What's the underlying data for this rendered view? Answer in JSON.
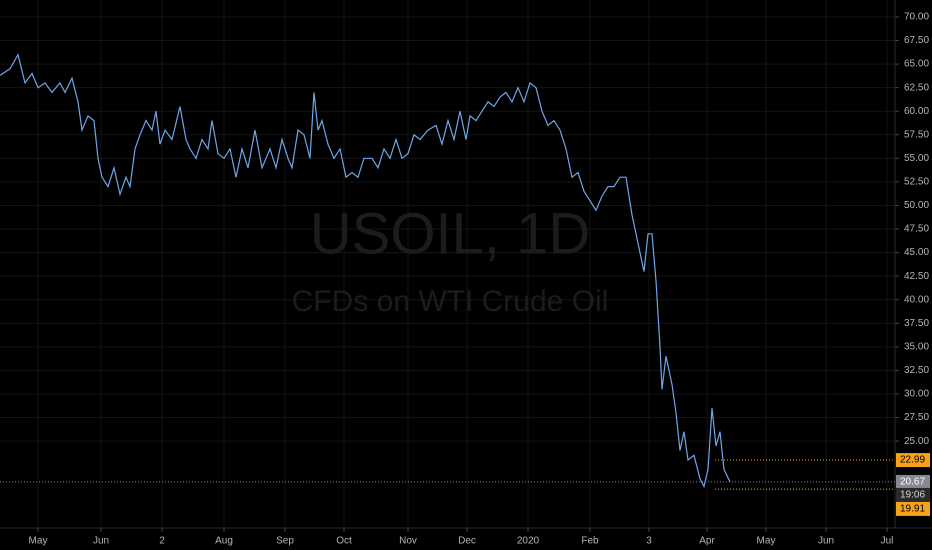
{
  "chart_data": {
    "type": "line",
    "watermark_title": "USOIL, 1D",
    "watermark_subtitle": "CFDs on WTI Crude Oil",
    "x": [
      0,
      10,
      18,
      25,
      32,
      38,
      45,
      52,
      60,
      65,
      72,
      78,
      82,
      88,
      94,
      98,
      102,
      108,
      114,
      120,
      126,
      130,
      135,
      140,
      146,
      152,
      156,
      160,
      165,
      172,
      180,
      186,
      190,
      196,
      202,
      208,
      212,
      218,
      224,
      230,
      236,
      242,
      248,
      255,
      262,
      270,
      276,
      282,
      288,
      292,
      298,
      304,
      310,
      314,
      318,
      322,
      328,
      334,
      340,
      346,
      352,
      358,
      364,
      372,
      378,
      384,
      390,
      396,
      402,
      408,
      414,
      420,
      428,
      436,
      442,
      448,
      454,
      460,
      466,
      470,
      476,
      482,
      488,
      494,
      500,
      506,
      512,
      518,
      524,
      530,
      536,
      542,
      548,
      554,
      560,
      566,
      572,
      578,
      584,
      590,
      596,
      602,
      608,
      614,
      620,
      626,
      632,
      638,
      644,
      648,
      652,
      656,
      660,
      662,
      666,
      672,
      676,
      680,
      684,
      688,
      694,
      700,
      704,
      708,
      712,
      716,
      720,
      724,
      730
    ],
    "series": [
      {
        "color": "#6ea6e8",
        "values": [
          63.8,
          64.5,
          66,
          63,
          64,
          62.5,
          63,
          62,
          63,
          62,
          63.5,
          61,
          58,
          59.5,
          59,
          55,
          53,
          52,
          54,
          51.2,
          53,
          52,
          56,
          57.5,
          59,
          58,
          60,
          56.5,
          58,
          57,
          60.5,
          57,
          56,
          55,
          57,
          56,
          59,
          55.5,
          55,
          56,
          53,
          56,
          54,
          58,
          54,
          56,
          54,
          57,
          55,
          54,
          58,
          57.5,
          55,
          62,
          58,
          59,
          56.5,
          55,
          56,
          53,
          53.5,
          53,
          55,
          55,
          54,
          56,
          55,
          57,
          55,
          55.5,
          57.5,
          57,
          58,
          58.5,
          56.5,
          59,
          57,
          60,
          57,
          59.5,
          59,
          60,
          61,
          60.5,
          61.5,
          62,
          61,
          62.5,
          61,
          63,
          62.5,
          60,
          58.5,
          59,
          58,
          56,
          53,
          53.5,
          51.5,
          50.5,
          49.5,
          51,
          52,
          52,
          53,
          53,
          49,
          46,
          43,
          47,
          47,
          42,
          35,
          30.5,
          34,
          31,
          28,
          24,
          26,
          23,
          23.5,
          21,
          20.2,
          22,
          28.5,
          24.5,
          26,
          22,
          20.67
        ]
      }
    ],
    "xlim": [
      0,
      895
    ],
    "ylim": [
      16.1,
      71.8
    ],
    "xticks": [
      {
        "value": 38,
        "label": "May"
      },
      {
        "value": 101,
        "label": "Jun"
      },
      {
        "value": 162,
        "label": "2"
      },
      {
        "value": 224,
        "label": "Aug"
      },
      {
        "value": 285,
        "label": "Sep"
      },
      {
        "value": 344,
        "label": "Oct"
      },
      {
        "value": 408,
        "label": "Nov"
      },
      {
        "value": 467,
        "label": "Dec"
      },
      {
        "value": 528,
        "label": "2020"
      },
      {
        "value": 590,
        "label": "Feb"
      },
      {
        "value": 649,
        "label": "3"
      },
      {
        "value": 707,
        "label": "Apr"
      },
      {
        "value": 766,
        "label": "May"
      },
      {
        "value": 826,
        "label": "Jun"
      },
      {
        "value": 887,
        "label": "Jul"
      }
    ],
    "yticks": [
      {
        "value": 70,
        "label": "70.00"
      },
      {
        "value": 67.5,
        "label": "67.50"
      },
      {
        "value": 65,
        "label": "65.00"
      },
      {
        "value": 62.5,
        "label": "62.50"
      },
      {
        "value": 60,
        "label": "60.00"
      },
      {
        "value": 57.5,
        "label": "57.50"
      },
      {
        "value": 55,
        "label": "55.00"
      },
      {
        "value": 52.5,
        "label": "52.50"
      },
      {
        "value": 50,
        "label": "50.00"
      },
      {
        "value": 47.5,
        "label": "47.50"
      },
      {
        "value": 45,
        "label": "45.00"
      },
      {
        "value": 42.5,
        "label": "42.50"
      },
      {
        "value": 40,
        "label": "40.00"
      },
      {
        "value": 37.5,
        "label": "37.50"
      },
      {
        "value": 35,
        "label": "35.00"
      },
      {
        "value": 32.5,
        "label": "32.50"
      },
      {
        "value": 30,
        "label": "30.00"
      },
      {
        "value": 27.5,
        "label": "27.50"
      },
      {
        "value": 25,
        "label": "25.00"
      }
    ],
    "grid": true,
    "price_lines": [
      {
        "value": 22.99,
        "color": "#f7a21b"
      },
      {
        "value": 20.67,
        "color": "#868993"
      },
      {
        "value": 19.91,
        "color": "#f7a21b"
      }
    ],
    "countdown": "19:06"
  }
}
